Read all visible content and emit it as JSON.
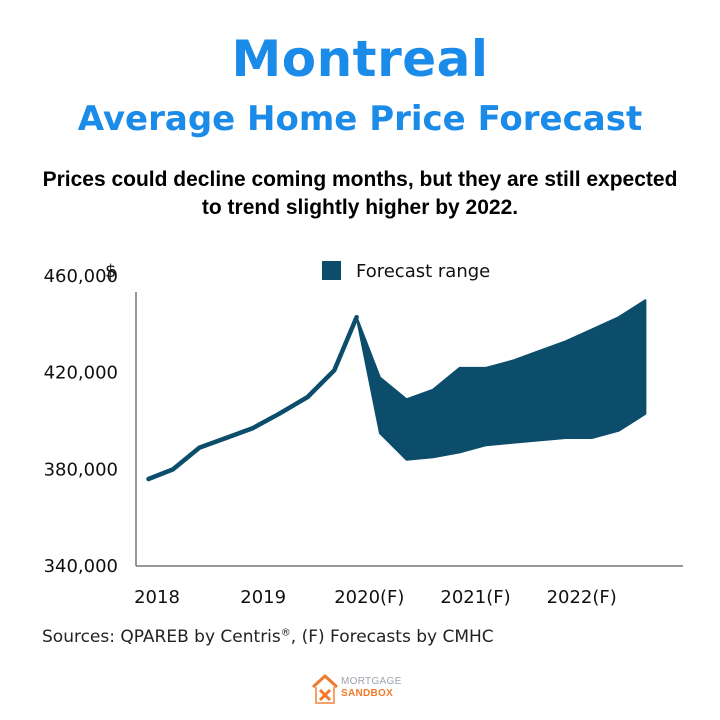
{
  "header": {
    "title": "Montreal",
    "subtitle": "Average Home Price Forecast",
    "description": "Prices could decline coming months, but they are still expected to trend slightly higher by 2022."
  },
  "footer": {
    "source_main": "Sources: QPAREB by Centris",
    "source_sup": "®",
    "source_tail": ", (F) Forecasts by CMHC",
    "logo_line1": "MORTGAGE",
    "logo_line2": "SANDBOX"
  },
  "colors": {
    "title": "#1a8be8",
    "series": "#0b4d6b",
    "logo_orange": "#f07a2a"
  },
  "chart_data": {
    "type": "area",
    "ylabel": "$",
    "ylim": [
      340000,
      465000
    ],
    "xlim": [
      2018.0,
      2022.7
    ],
    "y_ticks": [
      {
        "value": 340000,
        "label": "340,000"
      },
      {
        "value": 380000,
        "label": "380,000"
      },
      {
        "value": 420000,
        "label": "420,000"
      },
      {
        "value": 460000,
        "label": "460,000"
      }
    ],
    "x_ticks": [
      {
        "value": 2018,
        "label": "2018"
      },
      {
        "value": 2019,
        "label": "2019"
      },
      {
        "value": 2020,
        "label": "2020(F)"
      },
      {
        "value": 2021,
        "label": "2021(F)"
      },
      {
        "value": 2022,
        "label": "2022(F)"
      }
    ],
    "grid": false,
    "legend_position": "top",
    "series": [
      {
        "type": "line",
        "x": [
          2017.92,
          2018.15,
          2018.4,
          2018.65,
          2018.9,
          2019.15,
          2019.42,
          2019.67,
          2019.88
        ],
        "y": [
          376000,
          380000,
          389000,
          393000,
          397000,
          403000,
          410000,
          421000,
          443000
        ]
      },
      {
        "name": "Forecast range",
        "type": "range",
        "x": [
          2019.88,
          2020.1,
          2020.35,
          2020.6,
          2020.85,
          2021.1,
          2021.35,
          2021.6,
          2021.85,
          2022.1,
          2022.35,
          2022.6
        ],
        "upper": [
          443000,
          418000,
          409000,
          413000,
          422000,
          422000,
          425000,
          429000,
          433000,
          438000,
          443000,
          450000
        ],
        "lower": [
          443000,
          395000,
          384000,
          385000,
          387000,
          390000,
          391000,
          392000,
          393000,
          393000,
          396000,
          403000
        ]
      }
    ]
  }
}
